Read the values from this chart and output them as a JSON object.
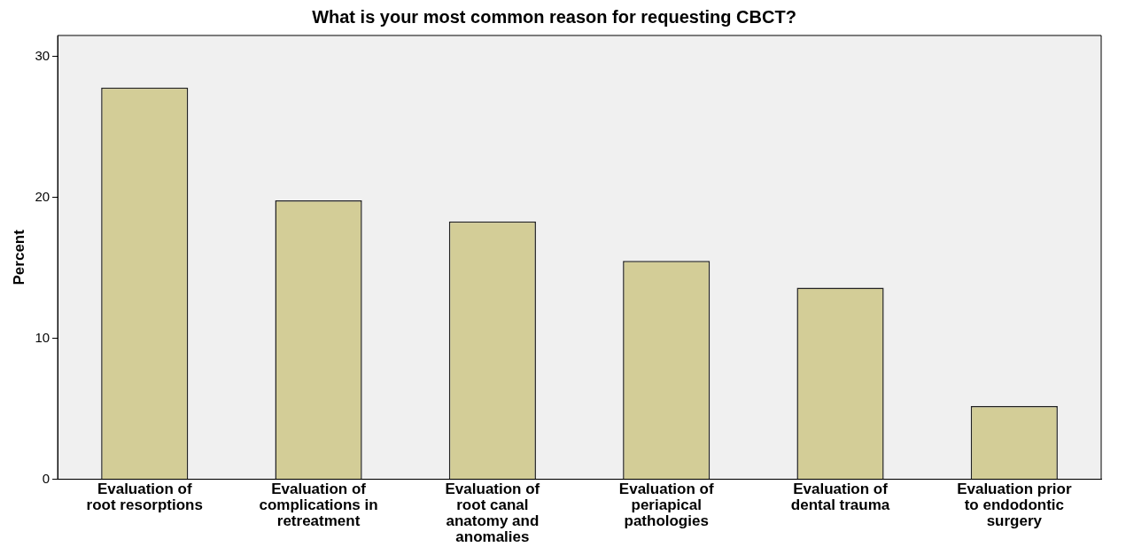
{
  "chart_data": {
    "type": "bar",
    "title": "What is your most common reason for requesting CBCT?",
    "ylabel": "Percent",
    "categories": [
      "Evaluation of root resorptions",
      "Evaluation of complications in retreatment",
      "Evaluation of root canal anatomy and anomalies",
      "Evaluation of periapical pathologies",
      "Evaluation of dental trauma",
      "Evaluation prior to endodontic surgery"
    ],
    "values": [
      27.8,
      19.8,
      18.3,
      15.5,
      13.6,
      5.2
    ],
    "color": "#d3cd97",
    "ylim": [
      0,
      31.5
    ],
    "yticks": [
      0,
      10,
      20,
      30
    ],
    "grid": false,
    "legend": false
  }
}
